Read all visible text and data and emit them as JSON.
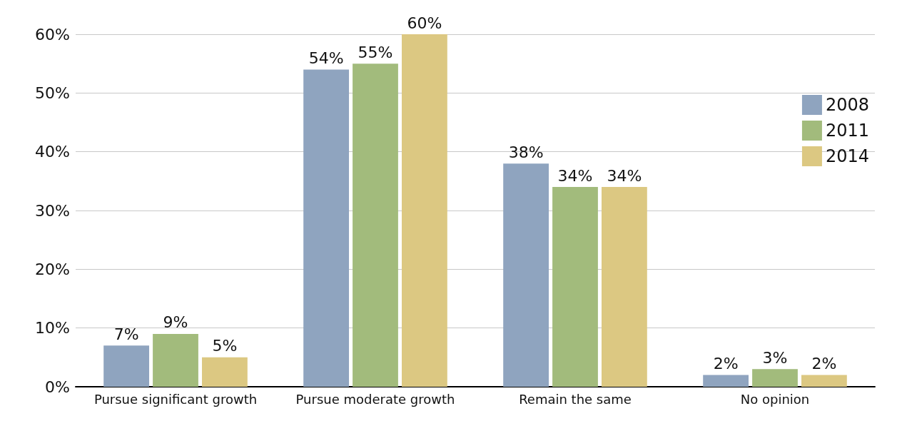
{
  "chart_data": {
    "type": "bar",
    "categories": [
      "Pursue significant growth",
      "Pursue moderate growth",
      "Remain the same",
      "No opinion"
    ],
    "series": [
      {
        "name": "2008",
        "color": "#8fa4bf",
        "values": [
          7,
          54,
          38,
          2
        ],
        "value_labels": [
          "7%",
          "54%",
          "38%",
          "2%"
        ]
      },
      {
        "name": "2011",
        "color": "#a2bb7c",
        "values": [
          9,
          55,
          34,
          3
        ],
        "value_labels": [
          "9%",
          "55%",
          "34%",
          "3%"
        ]
      },
      {
        "name": "2014",
        "color": "#dcc882",
        "values": [
          5,
          60,
          34,
          2
        ],
        "value_labels": [
          "5%",
          "60%",
          "34%",
          "2%"
        ]
      }
    ],
    "ylim": [
      0,
      60
    ],
    "yticks": [
      {
        "value": 0,
        "label": "0%"
      },
      {
        "value": 10,
        "label": "10%"
      },
      {
        "value": 20,
        "label": "20%"
      },
      {
        "value": 30,
        "label": "30%"
      },
      {
        "value": 40,
        "label": "40%"
      },
      {
        "value": 50,
        "label": "50%"
      },
      {
        "value": 60,
        "label": "60%"
      }
    ],
    "grid": "y",
    "legend": "right"
  }
}
